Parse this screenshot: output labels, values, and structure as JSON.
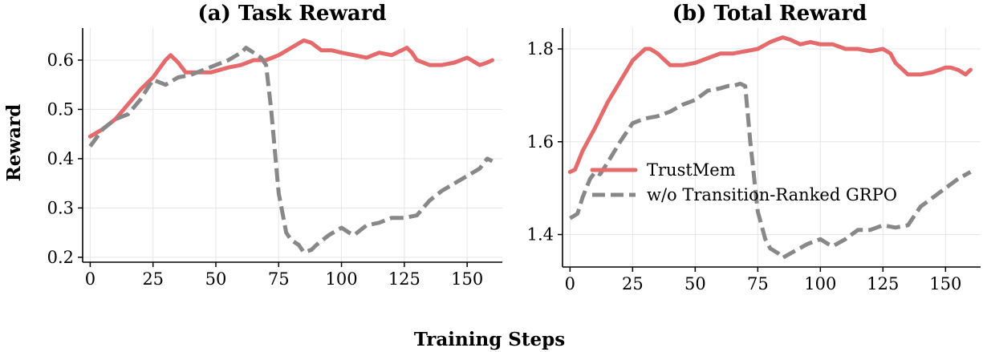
{
  "figure": {
    "xlabel": "Training Steps",
    "ylabel": "Reward"
  },
  "colors": {
    "trustmem": "#e46a6c",
    "ablation": "#888888",
    "grid": "#e5e5e5"
  },
  "legend": [
    "TrustMem",
    "w/o Transition-Ranked GRPO"
  ],
  "chart_data": [
    {
      "type": "line",
      "title": "(a) Task Reward",
      "xlim": [
        -3,
        164
      ],
      "ylim": [
        0.19,
        0.665
      ],
      "xticks": [
        0,
        25,
        50,
        75,
        100,
        125,
        150
      ],
      "yticks": [
        0.2,
        0.3,
        0.4,
        0.5,
        0.6
      ],
      "ytick_labels": [
        "0.2",
        "0.3",
        "0.4",
        "0.5",
        "0.6"
      ],
      "grid": true,
      "series": [
        {
          "name": "TrustMem",
          "style": "solid",
          "x": [
            0,
            5,
            10,
            15,
            20,
            25,
            30,
            32,
            35,
            38,
            42,
            48,
            55,
            60,
            65,
            70,
            75,
            80,
            85,
            88,
            92,
            96,
            100,
            105,
            110,
            115,
            120,
            126,
            128,
            130,
            135,
            140,
            145,
            150,
            155,
            158,
            160
          ],
          "y": [
            0.445,
            0.46,
            0.48,
            0.51,
            0.54,
            0.565,
            0.6,
            0.61,
            0.595,
            0.575,
            0.575,
            0.575,
            0.585,
            0.59,
            0.6,
            0.6,
            0.61,
            0.625,
            0.64,
            0.635,
            0.62,
            0.62,
            0.615,
            0.61,
            0.605,
            0.615,
            0.61,
            0.625,
            0.615,
            0.6,
            0.59,
            0.59,
            0.595,
            0.605,
            0.59,
            0.595,
            0.6
          ]
        },
        {
          "name": "w/o Transition-Ranked GRPO",
          "style": "dashed",
          "x": [
            0,
            5,
            10,
            15,
            20,
            25,
            30,
            35,
            40,
            45,
            50,
            55,
            60,
            62,
            65,
            68,
            70,
            72,
            75,
            78,
            80,
            83,
            85,
            88,
            90,
            95,
            100,
            103,
            105,
            110,
            115,
            120,
            125,
            130,
            135,
            140,
            145,
            150,
            155,
            158,
            160
          ],
          "y": [
            0.425,
            0.46,
            0.48,
            0.49,
            0.52,
            0.56,
            0.55,
            0.565,
            0.57,
            0.58,
            0.59,
            0.6,
            0.615,
            0.625,
            0.615,
            0.605,
            0.59,
            0.5,
            0.33,
            0.25,
            0.235,
            0.225,
            0.21,
            0.215,
            0.225,
            0.245,
            0.26,
            0.25,
            0.245,
            0.265,
            0.27,
            0.28,
            0.28,
            0.285,
            0.315,
            0.335,
            0.35,
            0.365,
            0.38,
            0.4,
            0.395
          ]
        }
      ]
    },
    {
      "type": "line",
      "title": "(b) Total Reward",
      "xlim": [
        -3,
        164
      ],
      "ylim": [
        1.33,
        1.845
      ],
      "xticks": [
        0,
        25,
        50,
        75,
        100,
        125,
        150
      ],
      "yticks": [
        1.4,
        1.6,
        1.8
      ],
      "ytick_labels": [
        "1.4",
        "1.6",
        "1.8"
      ],
      "grid": true,
      "legend_loc": "center-left",
      "series": [
        {
          "name": "TrustMem",
          "style": "solid",
          "x": [
            0,
            2,
            5,
            8,
            10,
            15,
            20,
            25,
            30,
            32,
            35,
            40,
            45,
            50,
            55,
            60,
            65,
            70,
            75,
            80,
            85,
            88,
            92,
            96,
            100,
            105,
            110,
            115,
            120,
            125,
            128,
            130,
            135,
            140,
            145,
            150,
            152,
            155,
            158,
            160
          ],
          "y": [
            1.535,
            1.54,
            1.58,
            1.61,
            1.63,
            1.685,
            1.73,
            1.775,
            1.8,
            1.8,
            1.79,
            1.765,
            1.765,
            1.77,
            1.78,
            1.79,
            1.79,
            1.795,
            1.8,
            1.815,
            1.825,
            1.82,
            1.81,
            1.815,
            1.81,
            1.81,
            1.8,
            1.8,
            1.795,
            1.8,
            1.79,
            1.77,
            1.745,
            1.745,
            1.75,
            1.76,
            1.76,
            1.755,
            1.745,
            1.755
          ]
        },
        {
          "name": "w/o Transition-Ranked GRPO",
          "style": "dashed",
          "x": [
            0,
            3,
            5,
            8,
            10,
            12,
            15,
            20,
            25,
            30,
            35,
            40,
            45,
            50,
            55,
            60,
            63,
            65,
            68,
            70,
            72,
            75,
            78,
            80,
            83,
            85,
            90,
            95,
            100,
            103,
            105,
            110,
            115,
            120,
            125,
            130,
            135,
            140,
            145,
            150,
            155,
            160
          ],
          "y": [
            1.435,
            1.445,
            1.48,
            1.52,
            1.535,
            1.53,
            1.555,
            1.6,
            1.64,
            1.65,
            1.655,
            1.665,
            1.68,
            1.69,
            1.71,
            1.715,
            1.72,
            1.72,
            1.725,
            1.72,
            1.6,
            1.45,
            1.39,
            1.37,
            1.36,
            1.35,
            1.365,
            1.38,
            1.39,
            1.38,
            1.375,
            1.39,
            1.41,
            1.41,
            1.42,
            1.415,
            1.42,
            1.46,
            1.48,
            1.5,
            1.52,
            1.535
          ]
        }
      ]
    }
  ]
}
